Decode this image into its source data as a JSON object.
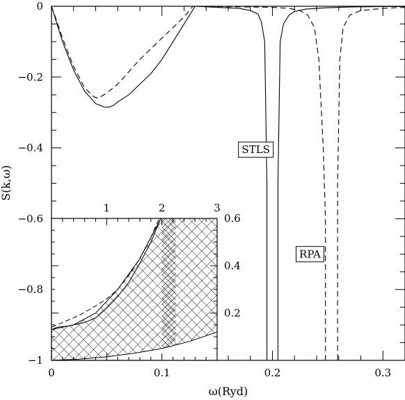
{
  "chart_data": [
    {
      "type": "line",
      "role": "main",
      "xlabel": "ω(Ryd)",
      "ylabel": "S(k,ω)",
      "xlim": [
        0,
        0.32
      ],
      "ylim": [
        -1,
        0
      ],
      "xticks": [
        0,
        0.1,
        0.2,
        0.3
      ],
      "xtick_labels": [
        "0",
        "0.1",
        "0.2",
        "0.3"
      ],
      "yticks": [
        -1,
        -0.8,
        -0.6,
        -0.4,
        -0.2,
        0
      ],
      "ytick_labels": [
        "−1",
        "−0.8",
        "−0.6",
        "−0.4",
        "−0.2",
        "0"
      ],
      "grid": false,
      "series": [
        {
          "name": "STLS",
          "style": "solid",
          "x": [
            0,
            0.004,
            0.01,
            0.02,
            0.03,
            0.04,
            0.048,
            0.052,
            0.056,
            0.06,
            0.07,
            0.08,
            0.09,
            0.1,
            0.11,
            0.12,
            0.13,
            0.15,
            0.17,
            0.18,
            0.187,
            0.19,
            0.193,
            0.195,
            0.195,
            0.205,
            0.205,
            0.207,
            0.21,
            0.215,
            0.22,
            0.23,
            0.25,
            0.27,
            0.3,
            0.32
          ],
          "y": [
            0,
            -0.04,
            -0.1,
            -0.18,
            -0.24,
            -0.275,
            -0.285,
            -0.285,
            -0.28,
            -0.27,
            -0.25,
            -0.22,
            -0.19,
            -0.15,
            -0.1,
            -0.05,
            0,
            -0.003,
            -0.006,
            -0.012,
            -0.022,
            -0.045,
            -0.1,
            -0.5,
            -1.0,
            -1.0,
            -0.5,
            -0.1,
            -0.05,
            -0.025,
            -0.015,
            -0.008,
            -0.004,
            -0.002,
            -0.001,
            -0.001
          ]
        },
        {
          "name": "RPA",
          "style": "dashed",
          "x": [
            0,
            0.004,
            0.01,
            0.02,
            0.03,
            0.038,
            0.042,
            0.05,
            0.06,
            0.07,
            0.08,
            0.09,
            0.1,
            0.11,
            0.12,
            0.128,
            0.15,
            0.18,
            0.2,
            0.215,
            0.225,
            0.232,
            0.238,
            0.242,
            0.246,
            0.248,
            0.248,
            0.259,
            0.259,
            0.261,
            0.264,
            0.27,
            0.28,
            0.3,
            0.32
          ],
          "y": [
            0,
            -0.035,
            -0.09,
            -0.17,
            -0.23,
            -0.255,
            -0.26,
            -0.245,
            -0.22,
            -0.185,
            -0.15,
            -0.12,
            -0.09,
            -0.06,
            -0.03,
            0,
            -0.001,
            -0.002,
            -0.003,
            -0.006,
            -0.012,
            -0.025,
            -0.06,
            -0.15,
            -0.4,
            -0.6,
            -1.0,
            -1.0,
            -0.5,
            -0.15,
            -0.06,
            -0.025,
            -0.012,
            -0.006,
            -0.003
          ]
        }
      ],
      "annotations": [
        {
          "text": "STLS",
          "x": 0.185,
          "y": -0.405
        },
        {
          "text": "RPA",
          "x": 0.234,
          "y": -0.7
        }
      ]
    },
    {
      "type": "line",
      "role": "inset",
      "xlim": [
        0,
        3
      ],
      "ylim": [
        0,
        0.6
      ],
      "xticks": [
        1,
        2,
        3
      ],
      "xtick_labels": [
        "1",
        "2",
        "3"
      ],
      "yticks": [
        0.2,
        0.4,
        0.6
      ],
      "ytick_labels": [
        "0.2",
        "0.4",
        "0.6"
      ],
      "xaxis_side": "top",
      "yaxis_side": "right",
      "grid": false,
      "hatched_region": {
        "upper_x": [
          0,
          0.4,
          0.8,
          1.2,
          1.6,
          1.98
        ],
        "upper_y": [
          0.13,
          0.15,
          0.2,
          0.3,
          0.43,
          0.6
        ],
        "lower_x": [
          0,
          0.5,
          1.0,
          1.5,
          2.0,
          2.5,
          3.0
        ],
        "lower_y": [
          0,
          0.005,
          0.015,
          0.03,
          0.05,
          0.08,
          0.12
        ]
      },
      "series": [
        {
          "style": "solid",
          "x": [
            0,
            0.1,
            0.3,
            0.6,
            0.8,
            1.0,
            1.2,
            1.4,
            1.6,
            1.8,
            1.98
          ],
          "y": [
            0.13,
            0.14,
            0.145,
            0.16,
            0.18,
            0.22,
            0.27,
            0.33,
            0.41,
            0.5,
            0.6
          ]
        },
        {
          "style": "dashed",
          "x": [
            0,
            0.2,
            0.5,
            0.8,
            1.0,
            1.2,
            1.4,
            1.6,
            1.8,
            1.95
          ],
          "y": [
            0.14,
            0.16,
            0.19,
            0.23,
            0.26,
            0.3,
            0.36,
            0.43,
            0.52,
            0.6
          ]
        }
      ]
    }
  ]
}
